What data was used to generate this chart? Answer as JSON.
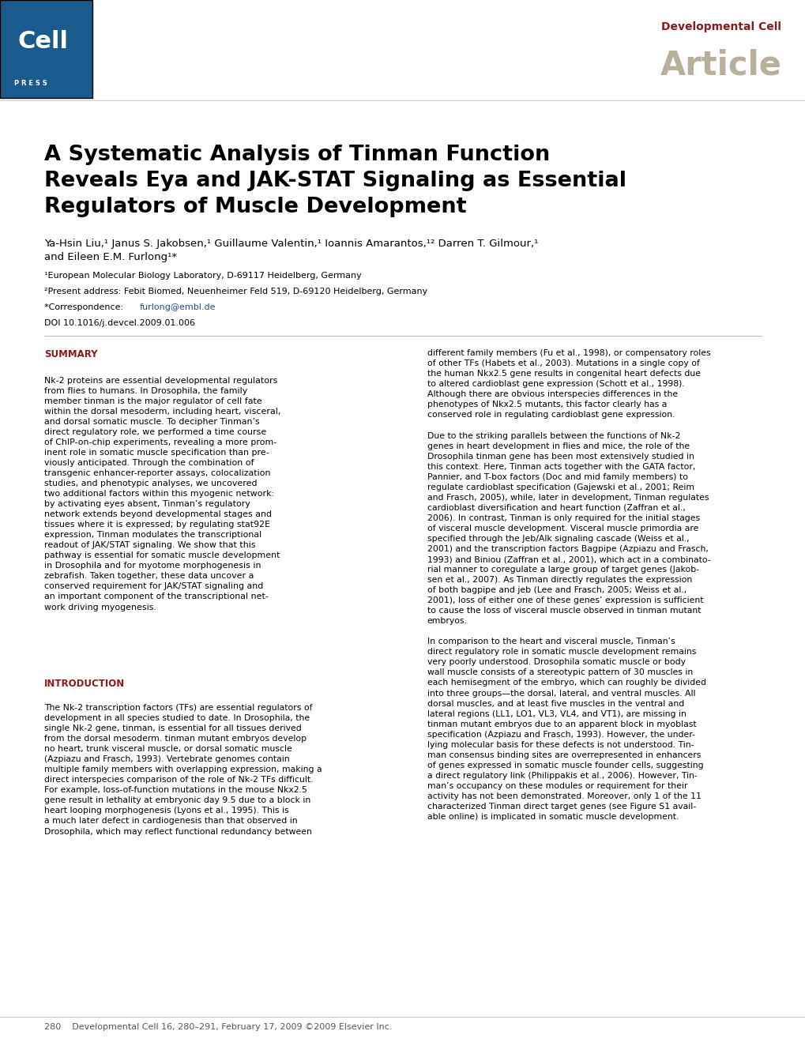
{
  "bg_color": "#ffffff",
  "header_box_color": "#1a5a8c",
  "cell_text": "Cell",
  "press_text": "PRESS",
  "journal_name": "Developmental Cell",
  "article_type": "Article",
  "journal_color": "#8b1a1a",
  "article_color": "#b8b09a",
  "title": "A Systematic Analysis of Tinman Function\nReveals Eya and JAK-STAT Signaling as Essential\nRegulators of Muscle Development",
  "authors": "Ya-Hsin Liu,¹ Janus S. Jakobsen,¹ Guillaume Valentin,¹ Ioannis Amarantos,¹² Darren T. Gilmour,¹\nand Eileen E.M. Furlong¹*",
  "affil1": "¹European Molecular Biology Laboratory, D-69117 Heidelberg, Germany",
  "affil2": "²Present address: Febit Biomed, Neuenheimer Feld 519, D-69120 Heidelberg, Germany",
  "correspond_pre": "*Correspondence: ",
  "correspond_email": "furlong@embl.de",
  "doi": "DOI 10.1016/j.devcel.2009.01.006",
  "email_color": "#1a4f8c",
  "summary_head": "SUMMARY",
  "summary_color": "#8b1a1a",
  "summary_text": "Nk-2 proteins are essential developmental regulators\nfrom flies to humans. In Drosophila, the family\nmember tinman is the major regulator of cell fate\nwithin the dorsal mesoderm, including heart, visceral,\nand dorsal somatic muscle. To decipher Tinman’s\ndirect regulatory role, we performed a time course\nof ChIP-on-chip experiments, revealing a more prom-\ninent role in somatic muscle specification than pre-\nviously anticipated. Through the combination of\ntransgenic enhancer-reporter assays, colocalization\nstudies, and phenotypic analyses, we uncovered\ntwo additional factors within this myogenic network:\nby activating eyes absent, Tinman’s regulatory\nnetwork extends beyond developmental stages and\ntissues where it is expressed; by regulating stat92E\nexpression, Tinman modulates the transcriptional\nreadout of JAK/STAT signaling. We show that this\npathway is essential for somatic muscle development\nin Drosophila and for myotome morphogenesis in\nzebrafish. Taken together, these data uncover a\nconserved requirement for JAK/STAT signaling and\nan important component of the transcriptional net-\nwork driving myogenesis.",
  "intro_head": "INTRODUCTION",
  "intro_color": "#8b1a1a",
  "intro_text": "The Nk-2 transcription factors (TFs) are essential regulators of\ndevelopment in all species studied to date. In Drosophila, the\nsingle Nk-2 gene, tinman, is essential for all tissues derived\nfrom the dorsal mesoderm. tinman mutant embryos develop\nno heart, trunk visceral muscle, or dorsal somatic muscle\n(Azpiazu and Frasch, 1993). Vertebrate genomes contain\nmultiple family members with overlapping expression, making a\ndirect interspecies comparison of the role of Nk-2 TFs difficult.\nFor example, loss-of-function mutations in the mouse Nkx2.5\ngene result in lethality at embryonic day 9.5 due to a block in\nheart looping morphogenesis (Lyons et al., 1995). This is\na much later defect in cardiogenesis than that observed in\nDrosophila, which may reflect functional redundancy between",
  "right_col_text": "different family members (Fu et al., 1998), or compensatory roles\nof other TFs (Habets et al., 2003). Mutations in a single copy of\nthe human Nkx2.5 gene results in congenital heart defects due\nto altered cardioblast gene expression (Schott et al., 1998).\nAlthough there are obvious interspecies differences in the\nphenotypes of Nkx2.5 mutants, this factor clearly has a\nconserved role in regulating cardioblast gene expression.\n\nDue to the striking parallels between the functions of Nk-2\ngenes in heart development in flies and mice, the role of the\nDrosophila tinman gene has been most extensively studied in\nthis context. Here, Tinman acts together with the GATA factor,\nPannier, and T-box factors (Doc and mid family members) to\nregulate cardioblast specification (Gajewski et al., 2001; Reim\nand Frasch, 2005), while, later in development, Tinman regulates\ncardioblast diversification and heart function (Zaffran et al.,\n2006). In contrast, Tinman is only required for the initial stages\nof visceral muscle development. Visceral muscle primordia are\nspecified through the Jeb/Alk signaling cascade (Weiss et al.,\n2001) and the transcription factors Bagpipe (Azpiazu and Frasch,\n1993) and Biniou (Zaffran et al., 2001), which act in a combinato-\nrial manner to coregulate a large group of target genes (Jakob-\nsen et al., 2007). As Tinman directly regulates the expression\nof both bagpipe and jeb (Lee and Frasch, 2005; Weiss et al.,\n2001), loss of either one of these genes’ expression is sufficient\nto cause the loss of visceral muscle observed in tinman mutant\nembryos.\n\nIn comparison to the heart and visceral muscle, Tinman’s\ndirect regulatory role in somatic muscle development remains\nvery poorly understood. Drosophila somatic muscle or body\nwall muscle consists of a stereotypic pattern of 30 muscles in\neach hemisegment of the embryo, which can roughly be divided\ninto three groups—the dorsal, lateral, and ventral muscles. All\ndorsal muscles, and at least five muscles in the ventral and\nlateral regions (LL1, LO1, VL3, VL4, and VT1), are missing in\ntinman mutant embryos due to an apparent block in myoblast\nspecification (Azpiazu and Frasch, 1993). However, the under-\nlying molecular basis for these defects is not understood. Tin-\nman consensus binding sites are overrepresented in enhancers\nof genes expressed in somatic muscle founder cells, suggesting\na direct regulatory link (Philippakis et al., 2006). However, Tin-\nman’s occupancy on these modules or requirement for their\nactivity has not been demonstrated. Moreover, only 1 of the 11\ncharacterized Tinman direct target genes (see Figure S1 avail-\nable online) is implicated in somatic muscle development.",
  "footer_text": "280    Developmental Cell 16, 280–291, February 17, 2009 ©2009 Elsevier Inc.",
  "footer_color": "#555555"
}
